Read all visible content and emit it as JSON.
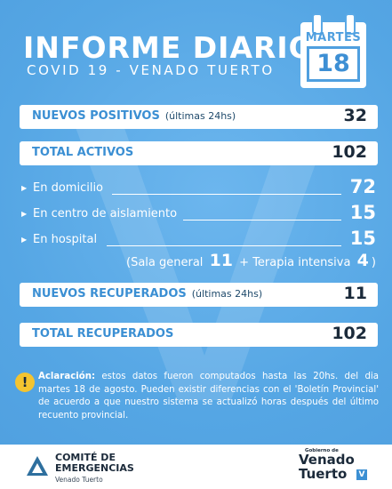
{
  "header": {
    "title": "INFORME DIARIO",
    "subtitle": "COVID 19 - VENADO TUERTO",
    "calendar": {
      "month": "MARTES",
      "day": "18"
    }
  },
  "cards": {
    "nuevos_positivos": {
      "label": "NUEVOS POSITIVOS",
      "note": "(últimas 24hs)",
      "value": "32"
    },
    "total_activos": {
      "label": "TOTAL ACTIVOS",
      "value": "102"
    },
    "nuevos_recuperados": {
      "label": "NUEVOS RECUPERADOS",
      "note": "(últimas 24hs)",
      "value": "11"
    },
    "total_recuperados": {
      "label": "TOTAL RECUPERADOS",
      "value": "102"
    }
  },
  "breakdown": {
    "domicilio": {
      "label": "En domicilio",
      "value": "72"
    },
    "aislamiento": {
      "label": "En centro de aislamiento",
      "value": "15"
    },
    "hospital": {
      "label": "En hospital",
      "value": "15"
    },
    "hospital_detail": {
      "open": "(",
      "sala_label": "Sala general",
      "sala_value": "11",
      "plus": "+",
      "terapia_label": "Terapia intensiva",
      "terapia_value": "4",
      "close": ")"
    }
  },
  "aclaracion": {
    "icon": "!",
    "heading": "Aclaración:",
    "text": "estos datos fueron computados hasta las 20hs. del dia martes 18 de agosto. Pueden existir diferencias con el 'Boletín Provincial' de acuerdo a que nuestro sistema se actualizó horas después del último recuento provincial."
  },
  "footer": {
    "left_line1": "COMITÉ DE",
    "left_line2": "EMERGENCIAS",
    "left_line3": "Venado Tuerto",
    "right_small": "Gobierno de",
    "right_line1": "Venado",
    "right_line2": "Tuerto",
    "right_badge": "V"
  },
  "colors": {
    "background": "#5aa9e6",
    "label_blue": "#3b8fd3",
    "dark_text": "#1b2a3a",
    "warning": "#f4c430"
  }
}
